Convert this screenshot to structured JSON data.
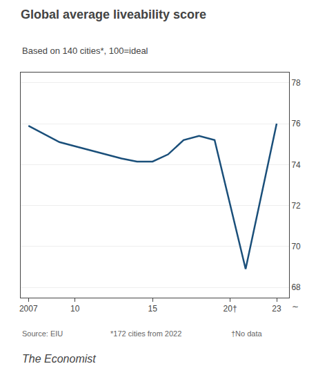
{
  "chart_data": {
    "type": "line",
    "title": "Global average liveability score",
    "subtitle": "Based on 140 cities*, 100=ideal",
    "x": [
      2007,
      2008,
      2009,
      2010,
      2011,
      2012,
      2013,
      2014,
      2015,
      2016,
      2017,
      2018,
      2019,
      2021,
      2023
    ],
    "values": [
      75.9,
      75.5,
      75.1,
      74.9,
      74.7,
      74.5,
      74.3,
      74.15,
      74.15,
      74.5,
      75.2,
      75.4,
      75.2,
      68.9,
      76.0
    ],
    "color": "#1a4f7a",
    "xlim": [
      2006.5,
      2023.8
    ],
    "xticks": [
      2007,
      {
        "value": 2010,
        "label": "10"
      },
      {
        "value": 2015,
        "label": "15"
      },
      {
        "value": 2020,
        "label": "20†"
      },
      {
        "value": 2023,
        "label": "23"
      }
    ],
    "ylim": [
      67.5,
      78.5
    ],
    "yticks": [
      68,
      70,
      72,
      74,
      76,
      78
    ],
    "grid": true,
    "annotations": [
      "∼",
      "Source: EIU",
      "*172 cities from 2022",
      "†No data",
      "The Economist"
    ]
  }
}
